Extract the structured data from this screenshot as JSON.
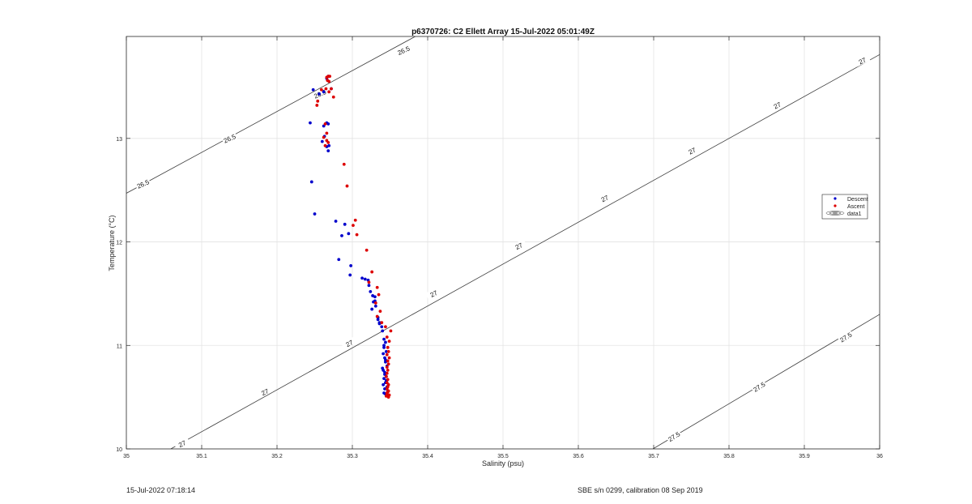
{
  "chart_data": {
    "type": "scatter",
    "title": "p6370726: C2 Ellett Array 15-Jul-2022 05:01:49Z",
    "xlabel": "Salinity (psu)",
    "ylabel": "Temperature (°C)",
    "xlim": [
      35,
      36
    ],
    "ylim": [
      10,
      13.985
    ],
    "xticks": [
      "35",
      "35.1",
      "35.2",
      "35.3",
      "35.4",
      "35.5",
      "35.6",
      "35.7",
      "35.8",
      "35.9",
      "36"
    ],
    "xtick_values": [
      35,
      35.1,
      35.2,
      35.3,
      35.4,
      35.5,
      35.6,
      35.7,
      35.8,
      35.9,
      36
    ],
    "yticks": [
      "10",
      "11",
      "12",
      "13"
    ],
    "ytick_values": [
      10,
      11,
      12,
      13
    ],
    "grid": true,
    "legend_position": "right",
    "legend": [
      {
        "label": "Descent",
        "color": "#0000cc"
      },
      {
        "label": "Ascent",
        "color": "#dd0000"
      },
      {
        "label": "data1",
        "color": "#222222"
      }
    ],
    "isopycnals": [
      {
        "label": "26.5",
        "points": [
          [
            35,
            12.47
          ],
          [
            35.4,
            14.05
          ]
        ]
      },
      {
        "label": "27",
        "points": [
          [
            35.059,
            10
          ],
          [
            36,
            13.81
          ]
        ]
      },
      {
        "label": "27.5",
        "points": [
          [
            35.699,
            10
          ],
          [
            36,
            11.3
          ]
        ]
      }
    ],
    "contour_labels": [
      {
        "text": "26.5",
        "x": 35.022,
        "y": 12.56,
        "angle": -24
      },
      {
        "text": "26.5",
        "x": 35.137,
        "y": 13.0,
        "angle": -24
      },
      {
        "text": "26.5",
        "x": 35.257,
        "y": 13.43,
        "angle": -24
      },
      {
        "text": "26.5",
        "x": 35.368,
        "y": 13.85,
        "angle": -24
      },
      {
        "text": "27",
        "x": 35.074,
        "y": 10.05,
        "angle": -26
      },
      {
        "text": "27",
        "x": 35.184,
        "y": 10.55,
        "angle": -26
      },
      {
        "text": "27",
        "x": 35.296,
        "y": 11.02,
        "angle": -26
      },
      {
        "text": "27",
        "x": 35.408,
        "y": 11.5,
        "angle": -26
      },
      {
        "text": "27",
        "x": 35.521,
        "y": 11.96,
        "angle": -26
      },
      {
        "text": "27",
        "x": 35.635,
        "y": 12.42,
        "angle": -26
      },
      {
        "text": "27",
        "x": 35.751,
        "y": 12.88,
        "angle": -26
      },
      {
        "text": "27",
        "x": 35.864,
        "y": 13.32,
        "angle": -26
      },
      {
        "text": "27",
        "x": 35.977,
        "y": 13.75,
        "angle": -26
      },
      {
        "text": "27.5",
        "x": 35.727,
        "y": 10.12,
        "angle": -32
      },
      {
        "text": "27.5",
        "x": 35.84,
        "y": 10.6,
        "angle": -32
      },
      {
        "text": "27.5",
        "x": 35.955,
        "y": 11.08,
        "angle": -32
      }
    ],
    "series": [
      {
        "name": "Descent",
        "color": "#0000cc",
        "x": [
          35.248,
          35.256,
          35.262,
          35.266,
          35.268,
          35.272,
          35.244,
          35.262,
          35.266,
          35.268,
          35.26,
          35.266,
          35.269,
          35.263,
          35.268,
          35.246,
          35.25,
          35.278,
          35.29,
          35.286,
          35.295,
          35.282,
          35.298,
          35.297,
          35.313,
          35.317,
          35.321,
          35.322,
          35.324,
          35.327,
          35.33,
          35.328,
          35.331,
          35.334,
          35.326,
          35.336,
          35.33,
          35.334,
          35.339,
          35.336,
          35.34,
          35.342,
          35.344,
          35.342,
          35.345,
          35.343,
          35.344,
          35.346,
          35.34,
          35.341,
          35.343,
          35.345,
          35.342,
          35.344,
          35.341,
          35.346,
          35.343,
          35.347,
          35.342,
          35.344,
          35.346,
          35.341,
          35.344,
          35.343,
          35.342,
          35.345
        ],
        "y": [
          13.47,
          13.43,
          13.45,
          13.58,
          13.6,
          13.48,
          13.15,
          13.12,
          13.15,
          13.14,
          12.97,
          12.92,
          12.93,
          13.02,
          12.88,
          12.58,
          12.27,
          12.2,
          12.17,
          12.06,
          12.08,
          11.83,
          11.77,
          11.68,
          11.65,
          11.64,
          11.63,
          11.58,
          11.52,
          11.48,
          11.47,
          11.42,
          11.38,
          11.27,
          11.35,
          11.22,
          11.43,
          11.25,
          11.18,
          11.21,
          11.14,
          11.06,
          11.03,
          10.98,
          10.94,
          10.88,
          10.84,
          10.8,
          10.78,
          10.76,
          10.72,
          10.7,
          10.68,
          10.64,
          10.62,
          10.6,
          10.58,
          10.56,
          10.54,
          10.53,
          10.52,
          10.92,
          10.86,
          10.74,
          11.0,
          10.66
        ]
      },
      {
        "name": "Ascent",
        "color": "#dd0000",
        "x": [
          35.266,
          35.268,
          35.27,
          35.267,
          35.269,
          35.265,
          35.259,
          35.272,
          35.269,
          35.275,
          35.254,
          35.253,
          35.264,
          35.266,
          35.262,
          35.266,
          35.268,
          35.264,
          35.289,
          35.293,
          35.304,
          35.301,
          35.306,
          35.319,
          35.326,
          35.322,
          35.333,
          35.335,
          35.331,
          35.337,
          35.333,
          35.339,
          35.344,
          35.351,
          35.346,
          35.349,
          35.347,
          35.348,
          35.346,
          35.349,
          35.347,
          35.348,
          35.346,
          35.347,
          35.346,
          35.345,
          35.347,
          35.346,
          35.348,
          35.347,
          35.346,
          35.348,
          35.347,
          35.346,
          35.349,
          35.345,
          35.348,
          35.347,
          35.346
        ],
        "y": [
          13.59,
          13.6,
          13.6,
          13.56,
          13.55,
          13.48,
          13.47,
          13.48,
          13.45,
          13.4,
          13.36,
          13.32,
          13.14,
          13.05,
          13.01,
          12.98,
          12.96,
          12.93,
          12.75,
          12.54,
          12.21,
          12.16,
          12.07,
          11.92,
          11.71,
          11.61,
          11.56,
          11.49,
          11.41,
          11.33,
          11.28,
          11.22,
          11.18,
          11.14,
          11.08,
          11.04,
          10.98,
          10.94,
          10.91,
          10.88,
          10.85,
          10.82,
          10.79,
          10.76,
          10.73,
          10.7,
          10.67,
          10.64,
          10.62,
          10.6,
          10.58,
          10.56,
          10.55,
          10.53,
          10.52,
          10.51,
          10.5,
          10.52,
          10.54
        ]
      }
    ]
  },
  "footer": {
    "left": "15-Jul-2022 07:18:14",
    "right": "SBE s/n 0299, calibration 08 Sep 2019"
  },
  "colors": {
    "grid": "#e3e3e3",
    "axis": "#262626",
    "contour": "#3c3c3c"
  }
}
